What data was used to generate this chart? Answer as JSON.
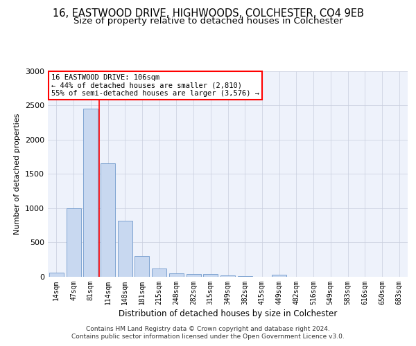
{
  "title1": "16, EASTWOOD DRIVE, HIGHWOODS, COLCHESTER, CO4 9EB",
  "title2": "Size of property relative to detached houses in Colchester",
  "xlabel": "Distribution of detached houses by size in Colchester",
  "ylabel": "Number of detached properties",
  "categories": [
    "14sqm",
    "47sqm",
    "81sqm",
    "114sqm",
    "148sqm",
    "181sqm",
    "215sqm",
    "248sqm",
    "282sqm",
    "315sqm",
    "349sqm",
    "382sqm",
    "415sqm",
    "449sqm",
    "482sqm",
    "516sqm",
    "549sqm",
    "583sqm",
    "616sqm",
    "650sqm",
    "683sqm"
  ],
  "values": [
    60,
    1000,
    2450,
    1650,
    820,
    300,
    120,
    55,
    45,
    45,
    25,
    15,
    0,
    30,
    0,
    0,
    0,
    0,
    0,
    0,
    0
  ],
  "bar_color": "#c8d8f0",
  "bar_edge_color": "#7099cc",
  "red_line_index": 2,
  "annotation_line1": "16 EASTWOOD DRIVE: 106sqm",
  "annotation_line2": "← 44% of detached houses are smaller (2,810)",
  "annotation_line3": "55% of semi-detached houses are larger (3,576) →",
  "ylim": [
    0,
    3000
  ],
  "yticks": [
    0,
    500,
    1000,
    1500,
    2000,
    2500,
    3000
  ],
  "footer_line1": "Contains HM Land Registry data © Crown copyright and database right 2024.",
  "footer_line2": "Contains public sector information licensed under the Open Government Licence v3.0.",
  "bg_color": "#eef2fb",
  "grid_color": "#c8cede",
  "title1_fontsize": 10.5,
  "title2_fontsize": 9.5,
  "xlabel_fontsize": 8.5,
  "ylabel_fontsize": 8,
  "tick_fontsize": 7,
  "annot_fontsize": 7.5,
  "footer_fontsize": 6.5
}
